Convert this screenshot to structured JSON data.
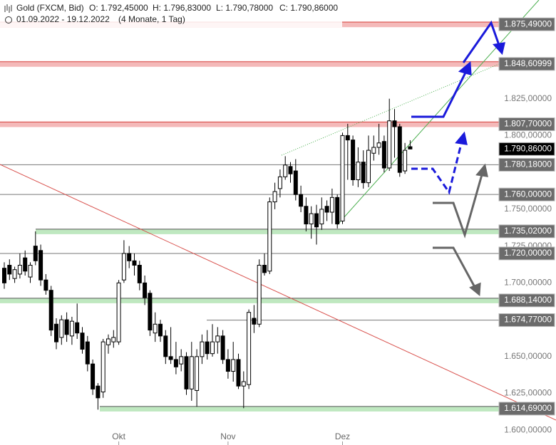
{
  "chart_data": {
    "type": "candlestick",
    "title": "Gold (FXCM, Bid)",
    "header_values": [
      "O: 1.792,45000",
      "H: 1.796,83000",
      "L: 1.790,78000",
      "C: 1.790,86000"
    ],
    "subtitle": "01.09.2022 - 19.12.2022",
    "subtitle_note": "(4 Monate, 1 Tag)",
    "categories": [
      null,
      null,
      null,
      null,
      null,
      null,
      null,
      null,
      null,
      null,
      null,
      null,
      null,
      null,
      null,
      null,
      null,
      null,
      null,
      null,
      null,
      null,
      "Okt",
      null,
      null,
      null,
      null,
      null,
      null,
      null,
      null,
      null,
      null,
      null,
      null,
      null,
      null,
      null,
      null,
      null,
      null,
      null,
      null,
      "Nov",
      null,
      null,
      null,
      null,
      null,
      null,
      null,
      null,
      null,
      null,
      null,
      null,
      null,
      null,
      null,
      null,
      null,
      null,
      null,
      null,
      null,
      "Dez",
      null,
      null,
      null,
      null,
      null,
      null,
      null,
      null,
      null,
      null,
      null,
      null,
      null
    ],
    "open": [
      1710,
      1712,
      1703,
      1706,
      1717,
      1704,
      1725,
      1722,
      1702,
      1695,
      1672,
      1663,
      1675,
      1664,
      1673,
      1666,
      1660,
      1645,
      1630,
      1626,
      1658,
      1660,
      1660,
      1702,
      1720,
      1715,
      1712,
      1700,
      1693,
      1666,
      1672,
      1664,
      1650,
      1648,
      1645,
      1650,
      1628,
      1627,
      1650,
      1660,
      1652,
      1660,
      1664,
      1648,
      1640,
      1648,
      1630,
      1631,
      1676,
      1672,
      1712,
      1708,
      1755,
      1764,
      1772,
      1779,
      1776,
      1760,
      1752,
      1740,
      1747,
      1740,
      1752,
      1748,
      1758,
      1742,
      1800,
      1797,
      1770,
      1782,
      1768,
      1788,
      1792,
      1796,
      1778,
      1810,
      1806,
      1776,
      1792.45
    ],
    "high": [
      1714,
      1716,
      1711,
      1720,
      1722,
      1714,
      1735,
      1726,
      1706,
      1698,
      1676,
      1678,
      1680,
      1677,
      1686,
      1670,
      1664,
      1648,
      1632,
      1662,
      1665,
      1668,
      1702,
      1729,
      1725,
      1720,
      1715,
      1705,
      1695,
      1680,
      1675,
      1668,
      1670,
      1660,
      1655,
      1653,
      1660,
      1655,
      1665,
      1668,
      1672,
      1670,
      1668,
      1655,
      1660,
      1652,
      1640,
      1682,
      1685,
      1716,
      1720,
      1758,
      1768,
      1777,
      1786,
      1782,
      1784,
      1766,
      1758,
      1752,
      1753,
      1758,
      1756,
      1764,
      1760,
      1802,
      1808,
      1800,
      1792,
      1790,
      1800,
      1800,
      1808,
      1800,
      1825,
      1818,
      1808,
      1795,
      1796.83
    ],
    "low": [
      1696,
      1702,
      1700,
      1703,
      1705,
      1700,
      1712,
      1698,
      1692,
      1664,
      1655,
      1658,
      1660,
      1658,
      1662,
      1652,
      1640,
      1624,
      1614,
      1622,
      1652,
      1656,
      1658,
      1700,
      1710,
      1705,
      1695,
      1685,
      1664,
      1660,
      1660,
      1645,
      1645,
      1638,
      1640,
      1624,
      1620,
      1616,
      1645,
      1648,
      1650,
      1652,
      1645,
      1635,
      1633,
      1628,
      1615,
      1628,
      1666,
      1670,
      1705,
      1706,
      1750,
      1758,
      1770,
      1768,
      1756,
      1748,
      1735,
      1730,
      1726,
      1736,
      1742,
      1740,
      1737,
      1740,
      1770,
      1766,
      1765,
      1764,
      1765,
      1783,
      1787,
      1775,
      1776,
      1785,
      1772,
      1774,
      1790.78
    ],
    "close": [
      1700,
      1706,
      1709,
      1712,
      1708,
      1712,
      1715,
      1702,
      1695,
      1668,
      1660,
      1675,
      1665,
      1674,
      1666,
      1655,
      1645,
      1628,
      1622,
      1660,
      1662,
      1663,
      1700,
      1720,
      1715,
      1712,
      1700,
      1690,
      1668,
      1672,
      1664,
      1650,
      1648,
      1643,
      1650,
      1628,
      1650,
      1650,
      1660,
      1652,
      1660,
      1664,
      1648,
      1640,
      1648,
      1630,
      1633,
      1680,
      1672,
      1712,
      1707,
      1755,
      1762,
      1772,
      1780,
      1774,
      1760,
      1752,
      1740,
      1747,
      1738,
      1750,
      1748,
      1758,
      1740,
      1800,
      1797,
      1770,
      1782,
      1768,
      1790,
      1792,
      1795,
      1778,
      1810,
      1806,
      1775,
      1790,
      1790.86
    ],
    "levels": [
      {
        "value": 1875.49,
        "label": "1.875,49000",
        "style": "red"
      },
      {
        "value": 1848.60999,
        "label": "1.848,60999",
        "style": "red"
      },
      {
        "value": 1807.7,
        "label": "1.807,70000",
        "style": "red"
      },
      {
        "value": 1790.86,
        "label": "1.790,86000",
        "style": "current"
      },
      {
        "value": 1780.18,
        "label": "1.780,18000",
        "style": "gray"
      },
      {
        "value": 1760,
        "label": "1.760,00000",
        "style": "gray"
      },
      {
        "value": 1735.02,
        "label": "1.735,02000",
        "style": "green"
      },
      {
        "value": 1720,
        "label": "1.720,00000",
        "style": "gray"
      },
      {
        "value": 1688.14,
        "label": "1.688,14000",
        "style": "green"
      },
      {
        "value": 1674.77,
        "label": "1.674,77000",
        "style": "gray"
      },
      {
        "value": 1614.69,
        "label": "1.614,69000",
        "style": "green"
      }
    ],
    "ylim": [
      1590,
      1892
    ],
    "yticks": [
      {
        "value": 1825,
        "label": "1.825,00000"
      },
      {
        "value": 1800,
        "label": "1.800,00000"
      },
      {
        "value": 1750,
        "label": "1.750,00000"
      },
      {
        "value": 1725,
        "label": "1.725,00000"
      },
      {
        "value": 1700,
        "label": "1.700,00000"
      },
      {
        "value": 1650,
        "label": "1.650,00000"
      },
      {
        "value": 1625,
        "label": "1.625,00000"
      },
      {
        "value": 1600,
        "label": "1.600,00000"
      }
    ],
    "colors": {
      "up": "#ffffff",
      "down": "#000000",
      "wick": "#000000",
      "red": "#f4b9b9",
      "green": "#bfe8c0"
    }
  }
}
